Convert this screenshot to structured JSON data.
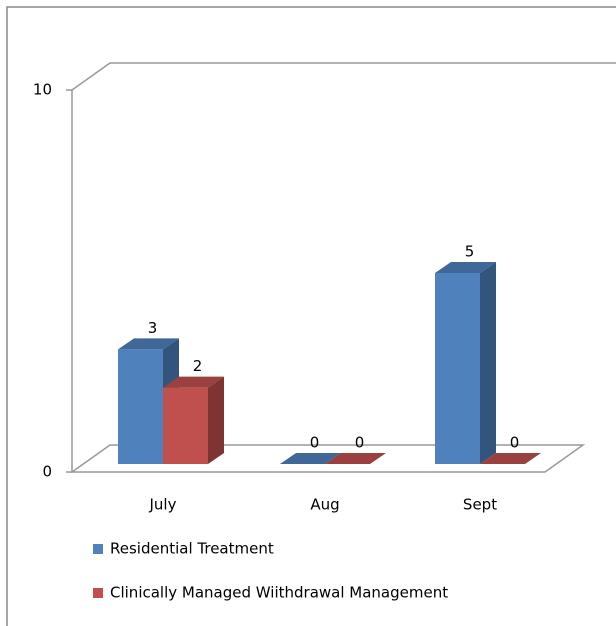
{
  "chart_data": {
    "type": "bar",
    "categories": [
      "July",
      "Aug",
      "Sept"
    ],
    "series": [
      {
        "name": "Residential Treatment",
        "color": "#4f81bd",
        "values": [
          3,
          0,
          5
        ]
      },
      {
        "name": "Clinically Managed Wiithdrawal Management",
        "color": "#c0504d",
        "values": [
          2,
          0,
          0
        ]
      }
    ],
    "ylim": [
      0,
      10
    ],
    "yticks": [
      0,
      10
    ]
  }
}
